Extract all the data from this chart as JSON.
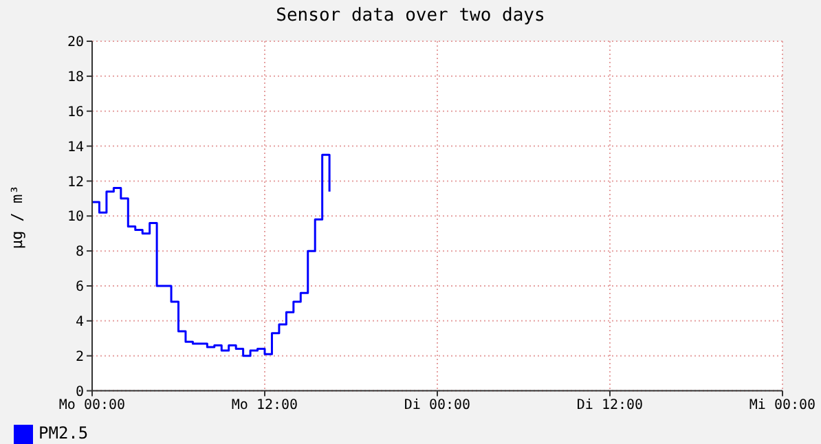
{
  "chart_data": {
    "type": "step",
    "title": "Sensor data over two days",
    "ylabel": "µg / m³",
    "categories": [
      "Mo 00:00",
      null,
      null,
      null,
      null,
      null,
      null,
      null,
      null,
      null,
      null,
      null,
      null,
      null,
      null,
      null,
      null,
      null,
      null,
      null,
      null,
      null,
      null,
      null,
      "Mo 12:00",
      null,
      null,
      null,
      null,
      null,
      null,
      null,
      null,
      null,
      null,
      null,
      null,
      null,
      null,
      null,
      null,
      null,
      null,
      null,
      null,
      null,
      null,
      null,
      "Di 00:00",
      null,
      null,
      null,
      null,
      null,
      null,
      null,
      null,
      null,
      null,
      null,
      null,
      null,
      null,
      null,
      null,
      null,
      null,
      null,
      null,
      null,
      null,
      null,
      "Di 12:00",
      null,
      null,
      null,
      null,
      null,
      null,
      null,
      null,
      null,
      null,
      null,
      null,
      null,
      null,
      null,
      null,
      null,
      null,
      null,
      null,
      null,
      null,
      null,
      "Mi 00:00"
    ],
    "ylim": [
      0,
      20
    ],
    "yticks": [
      0,
      2,
      4,
      6,
      8,
      10,
      12,
      14,
      16,
      18,
      20
    ],
    "grid": true,
    "legend": "bottom left",
    "line_style": "solid",
    "series": [
      {
        "name": "PM2.5",
        "color": "#0000ff",
        "values": [
          10.8,
          10.2,
          11.4,
          11.6,
          11.0,
          9.4,
          9.2,
          9.0,
          9.6,
          6.0,
          6.0,
          5.1,
          3.4,
          2.8,
          2.7,
          2.7,
          2.5,
          2.6,
          2.3,
          2.6,
          2.4,
          2.0,
          2.3,
          2.4,
          2.1,
          3.3,
          3.8,
          4.5,
          5.1,
          5.6,
          8.0,
          9.8,
          13.5,
          11.4,
          null,
          null,
          null,
          null,
          null,
          null,
          null,
          null,
          null,
          null,
          null,
          null,
          null,
          null,
          null,
          null,
          null,
          null,
          null,
          null,
          null,
          null,
          null,
          null,
          null,
          null,
          null,
          null,
          null,
          null,
          null,
          null,
          null,
          null,
          null,
          null,
          null,
          null,
          null,
          null,
          null,
          null,
          null,
          null,
          null,
          null,
          null,
          null,
          null,
          null,
          null,
          null,
          null,
          null,
          null,
          null,
          null,
          null,
          null,
          null,
          null,
          null,
          null
        ]
      }
    ]
  }
}
